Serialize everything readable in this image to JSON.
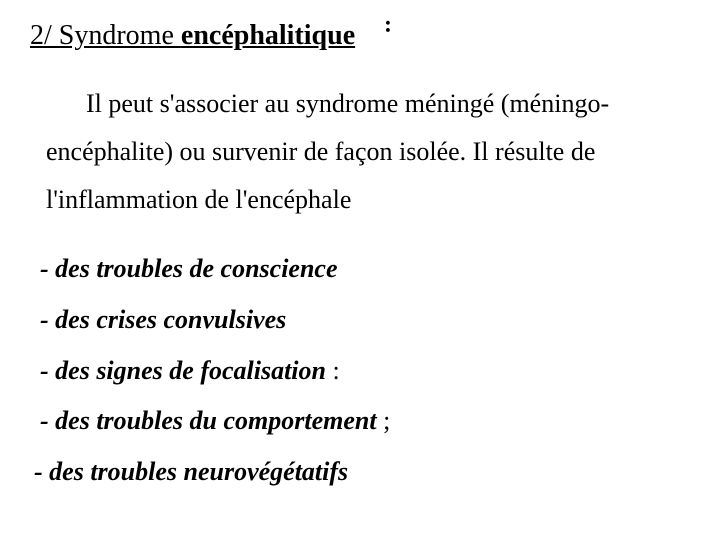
{
  "heading": {
    "prefix": "2/ Syndrome ",
    "bold": "encéphalitique",
    "colon": ":"
  },
  "paragraph": "Il peut s'associer au syndrome méningé (méningo-encéphalite) ou survenir de façon isolée. Il résulte de l'inflammation de l'encéphale",
  "list": [
    {
      "bold": "- des troubles de conscience",
      "trail": ""
    },
    {
      "bold": "- des crises convulsives",
      "trail": ""
    },
    {
      "bold": "- des signes de focalisation",
      "trail": " :"
    },
    {
      "bold": "- des troubles du comportement",
      "trail": " ;"
    },
    {
      "bold": "- des troubles neurovégétatifs",
      "trail": ""
    }
  ],
  "style": {
    "heading_fontsize": 28,
    "body_fontsize": 26,
    "line_height": 1.85,
    "text_color": "#000000",
    "background_color": "#ffffff",
    "font_family": "Times New Roman"
  }
}
